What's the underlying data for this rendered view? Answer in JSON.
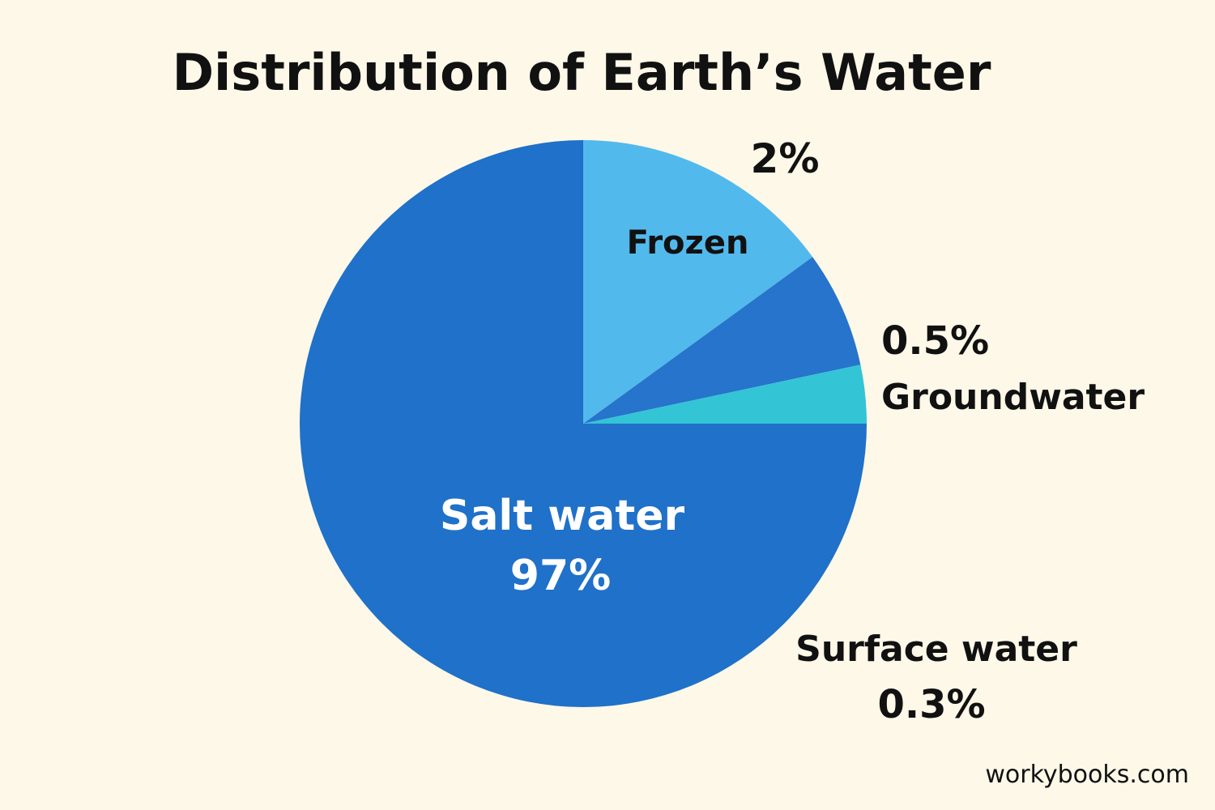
{
  "chart_data": {
    "type": "pie",
    "title": "Distribution of Earth’s Water",
    "slices": [
      {
        "label": "Salt water",
        "value_label": "97%",
        "value": 97,
        "color": "#1f71c9"
      },
      {
        "label": "Frozen",
        "value_label": "2%",
        "value": 2,
        "color": "#52b9ec"
      },
      {
        "label": "Groundwater",
        "value_label": "0.5%",
        "value": 0.5,
        "color": "#2674cb"
      },
      {
        "label": "Surface water",
        "value_label": "0.3%",
        "value": 0.3,
        "color": "#33c4d6"
      }
    ]
  },
  "source": "workybooks.com"
}
